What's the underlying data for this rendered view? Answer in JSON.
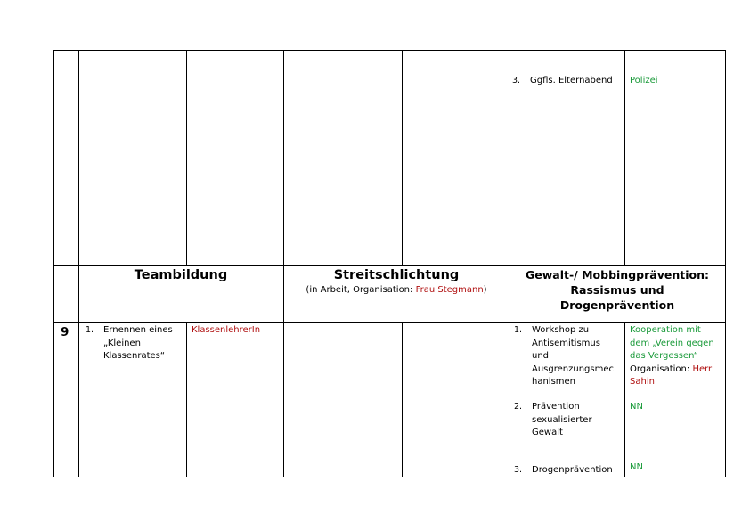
{
  "top_row": {
    "items": [
      {
        "number": "3.",
        "text": "Ggfls. Elternabend",
        "responsible": "Polizei"
      }
    ]
  },
  "headers": {
    "teambildung": {
      "title": "Teambildung"
    },
    "streitschlichtung": {
      "title": "Streitschlichtung",
      "note_prefix": "(in Arbeit, Organisation: ",
      "note_person": "Frau Stegmann",
      "note_suffix": ")"
    },
    "gewaltpraevention": {
      "line1": "Gewalt-/ Mobbingprävention:",
      "line2": "Rassismus und",
      "line3": "Drogenprävention"
    }
  },
  "row9": {
    "grade": "9",
    "teambildung": [
      {
        "number": "1.",
        "text": "Ernennen eines\n„Kleinen\nKlassenrates“",
        "responsible": "KlassenlehrerIn"
      }
    ],
    "gewalt": [
      {
        "number": "1.",
        "text": "Workshop zu\nAntisemitismus\nund\nAusgrenzungsmec\nhanismen",
        "responsible_green": "Kooperation mit\ndem „Verein gegen\ndas Vergessen“",
        "org_label": "Organisation: ",
        "org_person": "Herr\nSahin"
      },
      {
        "number": "2.",
        "text": "Prävention\nsexualisierter\nGewalt",
        "responsible": "NN"
      },
      {
        "number": "3.",
        "text": "Drogenprävention",
        "responsible": "NN"
      }
    ]
  },
  "colors": {
    "green": "#1a9a3a",
    "red": "#b01010"
  }
}
